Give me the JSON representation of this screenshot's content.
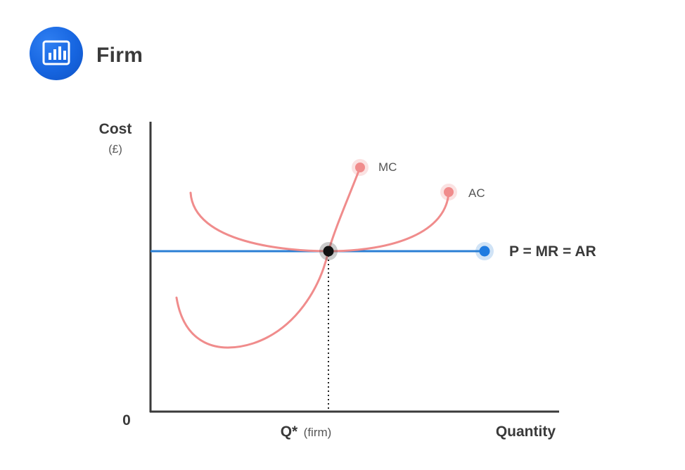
{
  "header": {
    "title": "Firm",
    "icon": "bar-chart-icon",
    "icon_bg": "#1665e0"
  },
  "diagram": {
    "y_axis_label": "Cost",
    "y_axis_unit": "(£)",
    "origin_label": "0",
    "x_axis_label": "Quantity",
    "equilibrium_label_bold": "Q*",
    "equilibrium_label_note": "(firm)",
    "curves": {
      "mc": {
        "label": "MC",
        "color": "#f08c8c"
      },
      "ac": {
        "label": "AC",
        "color": "#f08c8c"
      },
      "price": {
        "label": "P = MR = AR",
        "color": "#2b7fd4"
      }
    },
    "equilibrium_point_color": "#111111"
  }
}
